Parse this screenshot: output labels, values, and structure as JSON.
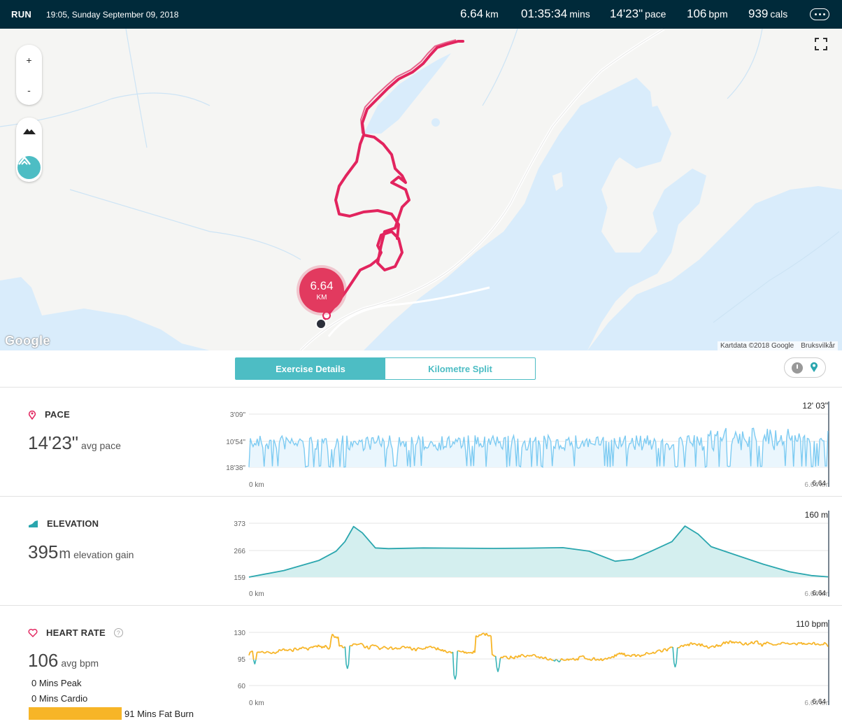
{
  "header": {
    "activity": "RUN",
    "datetime": "19:05, Sunday September 09, 2018",
    "distance": {
      "value": "6.64",
      "unit": "km"
    },
    "duration": {
      "value": "01:35:34",
      "unit": "mins"
    },
    "pace": {
      "value": "14'23\"",
      "unit": "pace"
    },
    "heart_rate": {
      "value": "106",
      "unit": "bpm"
    },
    "calories": {
      "value": "939",
      "unit": "cals"
    }
  },
  "map": {
    "zoom_in": "+",
    "zoom_out": "-",
    "marker_value": "6.64",
    "marker_unit": "KM",
    "logo": "Google",
    "attribution": "Kartdata ©2018 Google",
    "terms": "Bruksvilkår",
    "route_color": "#e2245e",
    "water_color": "#d9ecfb"
  },
  "tabs": [
    {
      "label": "Exercise Details",
      "active": true
    },
    {
      "label": "Kilometre Split",
      "active": false
    }
  ],
  "pace": {
    "title": "PACE",
    "value": "14'23\"",
    "label": "avg pace",
    "color": "#7dcbf2"
  },
  "elevation": {
    "title": "ELEVATION",
    "value": "395",
    "unit": "m",
    "label": "elevation gain",
    "color": "#2aa6ae"
  },
  "heart": {
    "title": "HEART RATE",
    "value": "106",
    "label": "avg bpm",
    "help": "?",
    "zones": {
      "peak": "0 Mins Peak",
      "cardio": "0 Mins Cardio",
      "fat_burn": "91 Mins Fat Burn"
    },
    "color": "#f7b527",
    "low_color": "#3bb5b8"
  },
  "chart_data": [
    {
      "type": "area",
      "name": "pace",
      "y_ticks": [
        "3'09\"",
        "10'54\"",
        "18'38\""
      ],
      "x_start": "0 km",
      "x_end": "6.64 km",
      "cursor_value": "12' 03\"",
      "cursor_x": "6.64"
    },
    {
      "type": "area",
      "name": "elevation",
      "y_ticks": [
        "373",
        "266",
        "159"
      ],
      "ylim": [
        159,
        373
      ],
      "x_start": "0 km",
      "x_end": "6.64 km",
      "cursor_value": "160 m",
      "cursor_x": "6.64",
      "x": [
        0,
        0.4,
        0.8,
        1.0,
        1.1,
        1.2,
        1.3,
        1.45,
        1.6,
        2.0,
        2.4,
        2.8,
        3.2,
        3.6,
        3.9,
        4.2,
        4.4,
        4.6,
        4.85,
        5.0,
        5.15,
        5.3,
        5.6,
        5.9,
        6.2,
        6.45,
        6.64
      ],
      "values": [
        159,
        185,
        225,
        262,
        300,
        360,
        335,
        275,
        272,
        275,
        274,
        273,
        274,
        276,
        262,
        222,
        230,
        260,
        300,
        362,
        330,
        280,
        245,
        210,
        180,
        165,
        160
      ]
    },
    {
      "type": "line",
      "name": "heart rate",
      "y_ticks": [
        "130",
        "95",
        "60"
      ],
      "ylim": [
        60,
        130
      ],
      "x_start": "0 km",
      "x_end": "6.64 km",
      "cursor_value": "110 bpm",
      "cursor_x": "6.64"
    }
  ]
}
